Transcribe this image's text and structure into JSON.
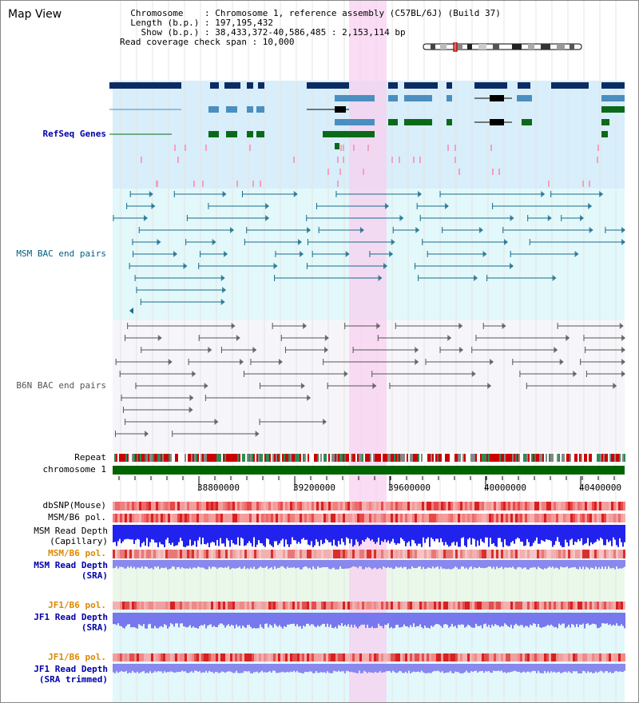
{
  "header": {
    "title": "Map View",
    "info_lines": [
      "  Chromosome    : Chromosome 1, reference assembly (C57BL/6J) (Build 37)",
      "  Length (b.p.) : 197,195,432",
      "    Show (b.p.) : 38,433,372-40,586,485 : 2,153,114 bp",
      "Read coverage check span : 10,000"
    ]
  },
  "tracks": {
    "refseq": "RefSeq Genes",
    "msm_bac": "MSM BAC end pairs",
    "b6n_bac": "B6N BAC end pairs",
    "repeat": "Repeat",
    "chromosome": "chromosome 1",
    "dbsnp": "dbSNP(Mouse)",
    "msm_b6_pol": "MSM/B6 pol.",
    "msm_read_depth_cap": [
      "MSM Read Depth",
      "(Capillary)"
    ],
    "msm_b6_pol2": "MSM/B6 pol.",
    "msm_read_depth_sra": [
      "MSM Read Depth",
      "(SRA)"
    ],
    "jf1_b6_pol": "JF1/B6 pol.",
    "jf1_read_depth_sra": [
      "JF1 Read Depth",
      "(SRA)"
    ],
    "jf1_b6_pol2": "JF1/B6 pol.",
    "jf1_read_depth_trim": [
      "JF1 Read Depth",
      "(SRA trimmed)"
    ]
  },
  "axis": {
    "ticks": [
      "38800000",
      "39200000",
      "39600000",
      "40000000",
      "40400000"
    ]
  },
  "colors": {
    "refseq_label": "#0000aa",
    "msm_label": "#005f80",
    "gray_label": "#555555",
    "orange_label": "#dd8800",
    "blue_label": "#0000aa",
    "highlight": "#f8d0f0",
    "chromosome": "#006400"
  }
}
